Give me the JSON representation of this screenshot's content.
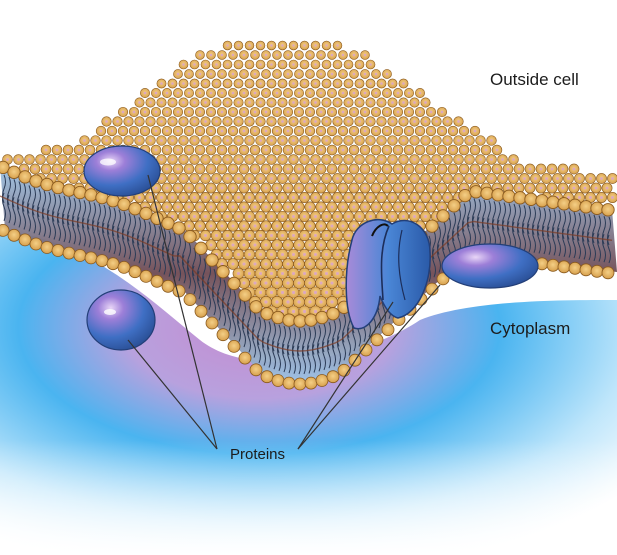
{
  "labels": {
    "outside": "Outside cell",
    "cytoplasm": "Cytoplasm",
    "proteins": "Proteins"
  },
  "colors": {
    "head_fill": "#e8b862",
    "head_stroke": "#8a5a1e",
    "head_center": "#d7a0cf",
    "tail": "#2b3b56",
    "interior_gap": "#7a3a24",
    "cytoplasm_blue": "#4ab4f0",
    "cytoplasm_pink": "#c58cd0",
    "protein": "#3f6fc4",
    "protein_light": "#b27bd6",
    "leader_line": "#333333"
  },
  "icons": {
    "membrane": "lipid-bilayer-icon",
    "protein": "membrane-protein-icon",
    "channel": "channel-protein-icon"
  }
}
